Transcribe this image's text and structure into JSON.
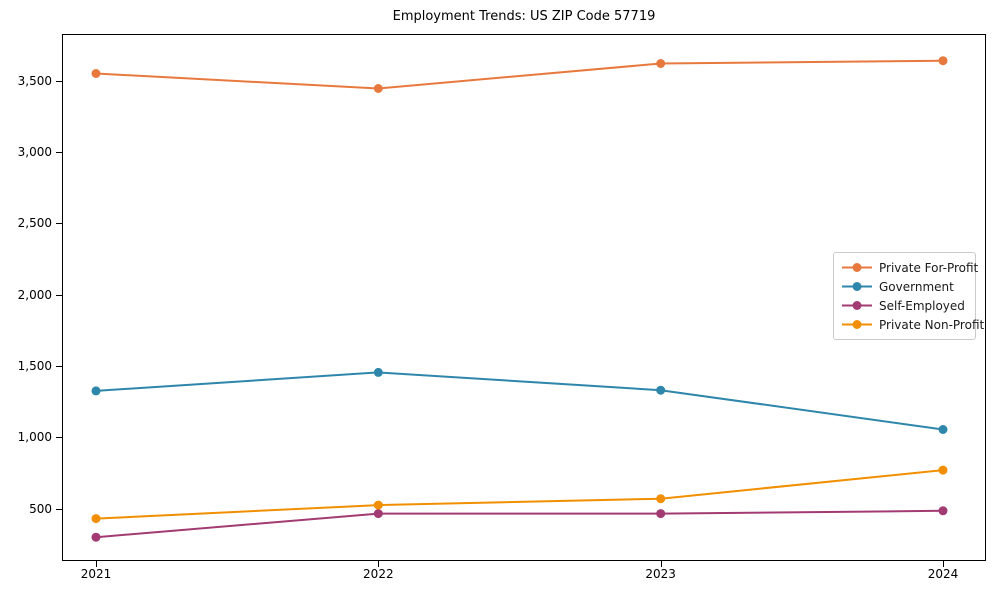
{
  "chart_data": {
    "type": "line",
    "title": "Employment Trends: US ZIP Code 57719",
    "x": [
      2021,
      2022,
      2023,
      2024
    ],
    "x_labels": [
      "2021",
      "2022",
      "2023",
      "2024"
    ],
    "series": [
      {
        "name": "Private For-Profit",
        "color": "#E8793E",
        "values": [
          3550,
          3445,
          3620,
          3640
        ]
      },
      {
        "name": "Government",
        "color": "#2E86AB",
        "values": [
          1325,
          1455,
          1330,
          1055
        ]
      },
      {
        "name": "Self-Employed",
        "color": "#A23B72",
        "values": [
          300,
          465,
          465,
          485
        ]
      },
      {
        "name": "Private Non-Profit",
        "color": "#F18F01",
        "values": [
          430,
          525,
          570,
          770
        ]
      }
    ],
    "yticks": [
      {
        "value": 500,
        "label": "500"
      },
      {
        "value": 1000,
        "label": "1,000"
      },
      {
        "value": 1500,
        "label": "1,500"
      },
      {
        "value": 2000,
        "label": "2,000"
      },
      {
        "value": 2500,
        "label": "2,500"
      },
      {
        "value": 3000,
        "label": "3,000"
      },
      {
        "value": 3500,
        "label": "3,500"
      }
    ],
    "ylim": [
      140,
      3820
    ],
    "xlabel": "",
    "ylabel": "",
    "grid": false,
    "legend_position": "center right",
    "marker": "o"
  }
}
